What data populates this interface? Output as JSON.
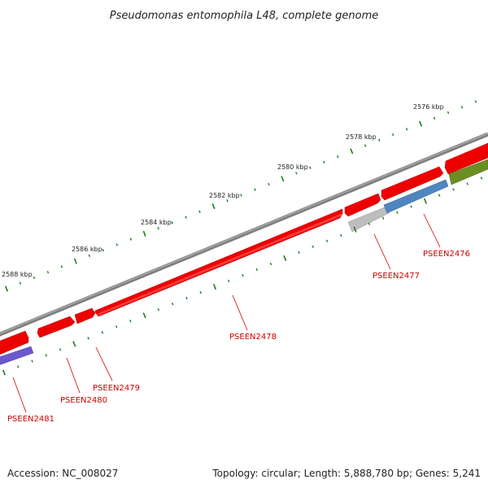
{
  "title": "Pseudomonas entomophila L48, complete genome",
  "footer": {
    "accession": "Accession: NC_008027",
    "summary": "Topology: circular; Length: 5,888,780 bp; Genes: 5,241"
  },
  "colors": {
    "backbone": "#7f7f7f",
    "tick": "#1a7f1a",
    "gene_red": "#ee0000",
    "gene_blue": "#4f86c0",
    "gene_purple": "#6a5acd",
    "gene_olive": "#6b8e23",
    "gene_gray": "#bdbdbd",
    "label": "#cc0000"
  },
  "scale_labels": [
    {
      "key": "2576",
      "text": "2576 kbp"
    },
    {
      "key": "2578",
      "text": "2578 kbp"
    },
    {
      "key": "2580",
      "text": "2580 kbp"
    },
    {
      "key": "2582",
      "text": "2582 kbp"
    },
    {
      "key": "2584",
      "text": "2584 kbp"
    },
    {
      "key": "2586",
      "text": "2586 kbp"
    },
    {
      "key": "2588",
      "text": "2588 kbp"
    }
  ],
  "gene_labels": [
    {
      "key": "PSEEN2476",
      "text": "PSEEN2476"
    },
    {
      "key": "PSEEN2477",
      "text": "PSEEN2477"
    },
    {
      "key": "PSEEN2478",
      "text": "PSEEN2478"
    },
    {
      "key": "PSEEN2479",
      "text": "PSEEN2479"
    },
    {
      "key": "PSEEN2480",
      "text": "PSEEN2480"
    },
    {
      "key": "PSEEN2481",
      "text": "PSEEN2481"
    }
  ]
}
